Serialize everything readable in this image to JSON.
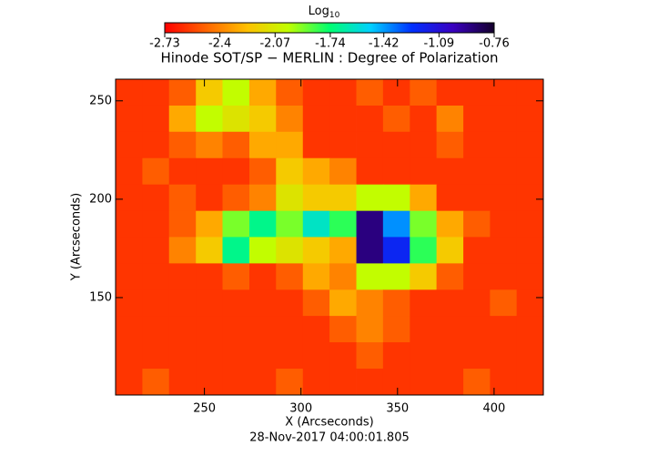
{
  "chart_data": {
    "type": "heatmap",
    "title": "Hinode SOT/SP − MERLIN : Degree of Polarization",
    "x_label": "X (Arcseconds)",
    "y_label": "Y (Arcseconds)",
    "subtitle": "28-Nov-2017 04:00:01.805",
    "xlim": [
      204,
      425.5
    ],
    "ylim": [
      100.5,
      261
    ],
    "xticks": [
      250,
      300,
      350,
      400
    ],
    "yticks": [
      150,
      200,
      250
    ],
    "x": [
      210.9,
      224.8,
      238.6,
      252.5,
      266.3,
      280.2,
      294.0,
      307.9,
      321.7,
      335.6,
      349.4,
      363.3,
      377.1,
      391.0,
      404.8,
      418.6
    ],
    "y": [
      254.3,
      240.9,
      227.6,
      214.2,
      200.8,
      187.4,
      174.1,
      160.7,
      147.3,
      134.0,
      120.6,
      107.2
    ],
    "z": [
      [
        -2.6,
        -2.6,
        -2.5,
        -2.2,
        -2.0,
        -2.3,
        -2.5,
        -2.6,
        -2.6,
        -2.5,
        -2.6,
        -2.5,
        -2.6,
        -2.6,
        -2.6,
        -2.6
      ],
      [
        -2.6,
        -2.6,
        -2.3,
        -2.0,
        -2.1,
        -2.2,
        -2.4,
        -2.6,
        -2.6,
        -2.6,
        -2.5,
        -2.6,
        -2.4,
        -2.6,
        -2.6,
        -2.6
      ],
      [
        -2.6,
        -2.6,
        -2.5,
        -2.4,
        -2.5,
        -2.3,
        -2.3,
        -2.6,
        -2.6,
        -2.6,
        -2.6,
        -2.6,
        -2.5,
        -2.6,
        -2.6,
        -2.6
      ],
      [
        -2.6,
        -2.5,
        -2.6,
        -2.6,
        -2.6,
        -2.5,
        -2.2,
        -2.3,
        -2.4,
        -2.6,
        -2.6,
        -2.6,
        -2.6,
        -2.6,
        -2.6,
        -2.6
      ],
      [
        -2.6,
        -2.6,
        -2.5,
        -2.6,
        -2.5,
        -2.4,
        -2.1,
        -2.2,
        -2.2,
        -2.0,
        -2.0,
        -2.3,
        -2.6,
        -2.6,
        -2.6,
        -2.6
      ],
      [
        -2.6,
        -2.6,
        -2.5,
        -2.3,
        -1.9,
        -1.7,
        -1.9,
        -1.6,
        -1.8,
        -0.9,
        -1.4,
        -1.9,
        -2.3,
        -2.5,
        -2.6,
        -2.6
      ],
      [
        -2.6,
        -2.6,
        -2.4,
        -2.2,
        -1.7,
        -2.0,
        -2.1,
        -2.2,
        -2.3,
        -0.9,
        -1.2,
        -1.8,
        -2.2,
        -2.6,
        -2.6,
        -2.6
      ],
      [
        -2.6,
        -2.6,
        -2.6,
        -2.6,
        -2.5,
        -2.6,
        -2.5,
        -2.3,
        -2.4,
        -2.0,
        -2.0,
        -2.2,
        -2.5,
        -2.6,
        -2.6,
        -2.6
      ],
      [
        -2.6,
        -2.6,
        -2.6,
        -2.6,
        -2.6,
        -2.6,
        -2.6,
        -2.5,
        -2.3,
        -2.4,
        -2.5,
        -2.6,
        -2.6,
        -2.6,
        -2.5,
        -2.6
      ],
      [
        -2.6,
        -2.6,
        -2.6,
        -2.6,
        -2.6,
        -2.6,
        -2.6,
        -2.6,
        -2.5,
        -2.4,
        -2.5,
        -2.6,
        -2.6,
        -2.6,
        -2.6,
        -2.6
      ],
      [
        -2.6,
        -2.6,
        -2.6,
        -2.6,
        -2.6,
        -2.6,
        -2.6,
        -2.6,
        -2.6,
        -2.5,
        -2.6,
        -2.6,
        -2.6,
        -2.6,
        -2.6,
        -2.6
      ],
      [
        -2.6,
        -2.5,
        -2.6,
        -2.6,
        -2.6,
        -2.6,
        -2.5,
        -2.6,
        -2.6,
        -2.6,
        -2.6,
        -2.6,
        -2.6,
        -2.5,
        -2.6,
        -2.6
      ]
    ],
    "colorbar": {
      "label": "Log",
      "label_sub": "10",
      "lim": [
        -2.73,
        -0.76
      ],
      "ticks": [
        -2.73,
        -2.4,
        -2.07,
        -1.74,
        -1.42,
        -1.09,
        -0.76
      ]
    },
    "colormap": [
      "#ff0000",
      "#ff6400",
      "#ffc000",
      "#c0ff00",
      "#00ff70",
      "#00d0ff",
      "#0030ff",
      "#3a00c0",
      "#14002a"
    ]
  }
}
